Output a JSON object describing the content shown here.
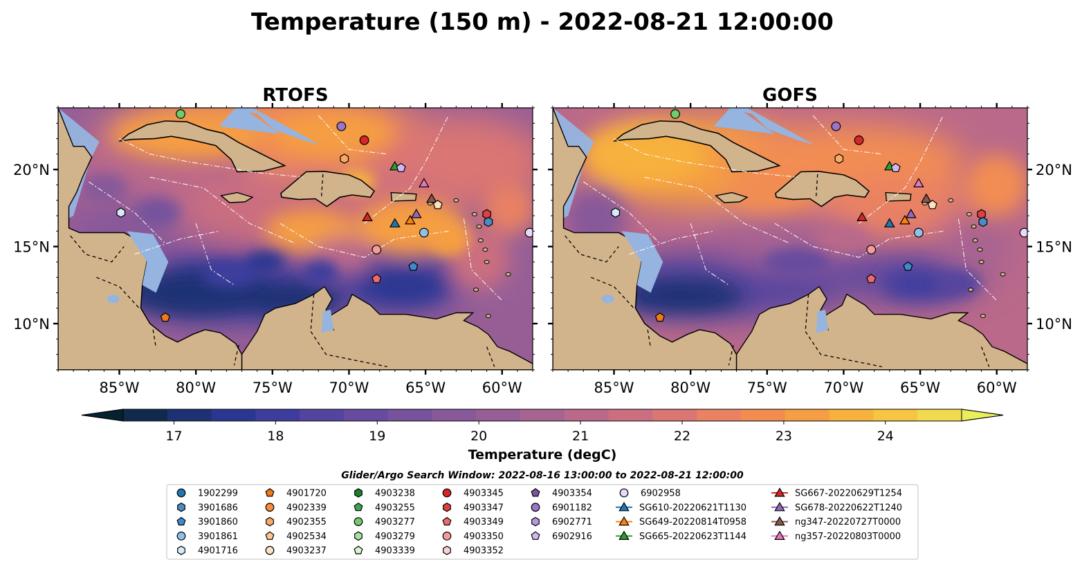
{
  "figure": {
    "title": "Temperature (150 m) - 2022-08-21 12:00:00",
    "search_window": "Glider/Argo Search Window: 2022-08-16 13:00:00 to 2022-08-21 12:00:00"
  },
  "panels": [
    {
      "title": "RTOFS",
      "variant": "rtofs"
    },
    {
      "title": "GOFS",
      "variant": "gofs"
    }
  ],
  "map": {
    "lon_range": [
      -89,
      -58
    ],
    "lat_range": [
      7,
      24
    ],
    "lon_ticks": [
      -85,
      -80,
      -75,
      -70,
      -65,
      -60
    ],
    "lon_tick_labels": [
      "85°W",
      "80°W",
      "75°W",
      "70°W",
      "65°W",
      "60°W"
    ],
    "lat_ticks": [
      10,
      15,
      20
    ],
    "lat_tick_labels": [
      "10°N",
      "15°N",
      "20°N"
    ]
  },
  "colorbar": {
    "label": "Temperature (degC)",
    "min": 16.5,
    "max": 24.75,
    "step": 0.5,
    "extend": "both",
    "ticks": [
      17,
      18,
      19,
      20,
      21,
      22,
      23,
      24
    ],
    "tick_labels": [
      "17",
      "18",
      "19",
      "20",
      "21",
      "22",
      "23",
      "24"
    ],
    "colors": [
      "#062231",
      "#0e2a4c",
      "#1d3173",
      "#2a3791",
      "#3e3d9e",
      "#54449f",
      "#664b9e",
      "#76539c",
      "#87599a",
      "#975e96",
      "#a86491",
      "#ba698a",
      "#cb6e80",
      "#da7673",
      "#e98163",
      "#f28d52",
      "#f59e43",
      "#f7b13d",
      "#f6c541",
      "#f2da4e",
      "#eaee5c"
    ]
  },
  "colors": {
    "land": "#d2b48c",
    "shallow_water": "#96b4e0",
    "deep_ocean": "#062231"
  },
  "legend": {
    "columns": [
      [
        {
          "label": "1902299",
          "marker": "circle",
          "color": "#1f77b4"
        },
        {
          "label": "3901686",
          "marker": "hexagon",
          "color": "#4a8cc4"
        },
        {
          "label": "3901860",
          "marker": "pentagon",
          "color": "#3c8bd0"
        },
        {
          "label": "3901861",
          "marker": "circle",
          "color": "#8fc1e6"
        },
        {
          "label": "4901716",
          "marker": "hexagon",
          "color": "#d5ebfa"
        }
      ],
      [
        {
          "label": "4901720",
          "marker": "pentagon",
          "color": "#ef7b17"
        },
        {
          "label": "4902339",
          "marker": "circle",
          "color": "#fa8c38"
        },
        {
          "label": "4902355",
          "marker": "hexagon",
          "color": "#fbaa66"
        },
        {
          "label": "4902534",
          "marker": "pentagon",
          "color": "#fdc592"
        },
        {
          "label": "4903237",
          "marker": "circle",
          "color": "#fde0c2"
        }
      ],
      [
        {
          "label": "4903238",
          "marker": "hexagon",
          "color": "#1a7f2a"
        },
        {
          "label": "4903255",
          "marker": "pentagon",
          "color": "#3ba64a"
        },
        {
          "label": "4903277",
          "marker": "circle",
          "color": "#6fcc6f"
        },
        {
          "label": "4903279",
          "marker": "hexagon",
          "color": "#a7e3a0"
        },
        {
          "label": "4903339",
          "marker": "pentagon",
          "color": "#d6f5cf"
        }
      ],
      [
        {
          "label": "4903345",
          "marker": "circle",
          "color": "#d62728"
        },
        {
          "label": "4903347",
          "marker": "hexagon",
          "color": "#e0403f"
        },
        {
          "label": "4903349",
          "marker": "pentagon",
          "color": "#ec6a6a"
        },
        {
          "label": "4903350",
          "marker": "circle",
          "color": "#f59b9b"
        },
        {
          "label": "4903352",
          "marker": "hexagon",
          "color": "#fbcfcf"
        }
      ],
      [
        {
          "label": "4903354",
          "marker": "pentagon",
          "color": "#7b559e"
        },
        {
          "label": "6901182",
          "marker": "circle",
          "color": "#9c74c8"
        },
        {
          "label": "6902771",
          "marker": "hexagon",
          "color": "#b796de"
        },
        {
          "label": "6902916",
          "marker": "pentagon",
          "color": "#d1b7f2"
        }
      ],
      [
        {
          "label": "6902958",
          "marker": "circle",
          "color": "#ead8f8"
        },
        {
          "label": "SG610-20220621T1130",
          "marker": "triangle",
          "color": "#1f77b4",
          "line": true
        },
        {
          "label": "SG649-20220814T0958",
          "marker": "triangle",
          "color": "#ff7f0e",
          "line": true
        },
        {
          "label": "SG665-20220623T1144",
          "marker": "triangle",
          "color": "#2ca02c",
          "line": true
        }
      ],
      [
        {
          "label": "SG667-20220629T1254",
          "marker": "triangle",
          "color": "#d62728",
          "line": true
        },
        {
          "label": "SG678-20220622T1240",
          "marker": "triangle",
          "color": "#9467bd",
          "line": true
        },
        {
          "label": "ng347-20220727T0000",
          "marker": "triangle",
          "color": "#8c564b",
          "line": true
        },
        {
          "label": "ng357-20220803T0000",
          "marker": "triangle",
          "color": "#e377c2",
          "line": true
        }
      ]
    ]
  },
  "platforms": [
    {
      "marker": "circle",
      "color": "#6fcc6f",
      "lon": -81.0,
      "lat": 23.6
    },
    {
      "marker": "circle",
      "color": "#9c74c8",
      "lon": -70.5,
      "lat": 22.8
    },
    {
      "marker": "circle",
      "color": "#d62728",
      "lon": -69.0,
      "lat": 21.9
    },
    {
      "marker": "triangle",
      "color": "#2ca02c",
      "lon": -67.0,
      "lat": 20.2
    },
    {
      "marker": "pentagon",
      "color": "#d1b7f2",
      "lon": -66.6,
      "lat": 20.1
    },
    {
      "marker": "hexagon",
      "color": "#fbaa66",
      "lon": -70.3,
      "lat": 20.7
    },
    {
      "marker": "triangle",
      "color": "#e377c2",
      "lon": -65.1,
      "lat": 19.1
    },
    {
      "marker": "triangle",
      "color": "#8c564b",
      "lon": -64.6,
      "lat": 18.1
    },
    {
      "marker": "pentagon",
      "color": "#fde0c2",
      "lon": -64.2,
      "lat": 17.7
    },
    {
      "marker": "triangle",
      "color": "#9467bd",
      "lon": -65.6,
      "lat": 17.1
    },
    {
      "marker": "triangle",
      "color": "#ff7f0e",
      "lon": -66.0,
      "lat": 16.7
    },
    {
      "marker": "triangle",
      "color": "#1f77b4",
      "lon": -67.0,
      "lat": 16.5
    },
    {
      "marker": "triangle",
      "color": "#d62728",
      "lon": -68.8,
      "lat": 16.9
    },
    {
      "marker": "hexagon",
      "color": "#e0403f",
      "lon": -61.0,
      "lat": 17.1
    },
    {
      "marker": "hexagon",
      "color": "#4a8cc4",
      "lon": -60.9,
      "lat": 16.6
    },
    {
      "marker": "circle",
      "color": "#8fc1e6",
      "lon": -65.1,
      "lat": 15.9
    },
    {
      "marker": "circle",
      "color": "#ead8f8",
      "lon": -58.2,
      "lat": 15.9
    },
    {
      "marker": "circle",
      "color": "#f59b9b",
      "lon": -68.2,
      "lat": 14.8
    },
    {
      "marker": "pentagon",
      "color": "#3c8bd0",
      "lon": -65.8,
      "lat": 13.7
    },
    {
      "marker": "pentagon",
      "color": "#ec6a6a",
      "lon": -68.2,
      "lat": 12.9
    },
    {
      "marker": "hexagon",
      "color": "#d5ebfa",
      "lon": -84.9,
      "lat": 17.2
    },
    {
      "marker": "pentagon",
      "color": "#ef7b17",
      "lon": -82.0,
      "lat": 10.4
    }
  ]
}
